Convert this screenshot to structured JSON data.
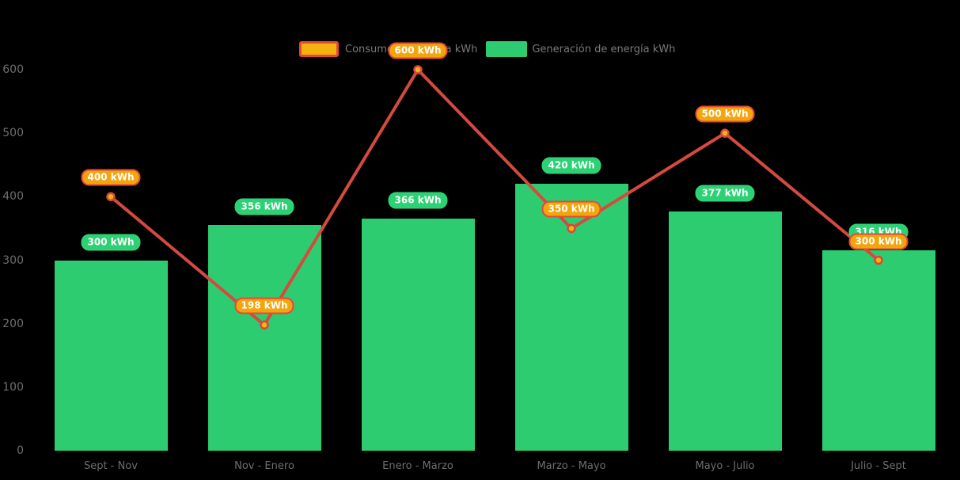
{
  "legend": {
    "consumption_label": "Consumo de energía kWh",
    "generation_label": "Generación de energía kWh"
  },
  "colors": {
    "background": "#000000",
    "bar_green": "#2dcc71",
    "badge_green_fill": "#2bd173",
    "line_red": "#d64a3e",
    "point_fill": "#f5b40f",
    "point_stroke": "#d9473c",
    "badge_orange_fill": "#f2a60d",
    "badge_orange_border": "#e84839",
    "badge_text": "#ffffff",
    "axis_text": "#6e6e6e",
    "legend_text": "#7a7a7a",
    "legend_marker_consumption_fill": "#f3b30e",
    "legend_marker_consumption_border": "#e84839"
  },
  "chart_data": {
    "type": "bar",
    "subtype": "bar-with-line-overlay",
    "title": "",
    "xlabel": "",
    "ylabel": "",
    "categories": [
      "Sept - Nov",
      "Nov - Enero",
      "Enero - Marzo",
      "Marzo - Mayo",
      "Mayo - Julio",
      "Julio - Sept"
    ],
    "series": [
      {
        "name": "Generación de energía kWh",
        "type": "bar",
        "color": "#2dcc71",
        "values": [
          300,
          356,
          366,
          420,
          377,
          316
        ],
        "data_labels": [
          "300 kWh",
          "356 kWh",
          "366 kWh",
          "420 kWh",
          "377 kWh",
          "316 kWh"
        ]
      },
      {
        "name": "Consumo de energía kWh",
        "type": "line",
        "color": "#d64a3e",
        "values": [
          400,
          198,
          600,
          350,
          500,
          300
        ],
        "data_labels": [
          "400 kWh",
          "198 kWh",
          "600 kWh",
          "350 kWh",
          "500 kWh",
          "300 kWh"
        ]
      }
    ],
    "ylim": [
      0,
      600
    ],
    "yticks": [
      0,
      100,
      200,
      300,
      400,
      500,
      600
    ],
    "grid": false,
    "legend_position": "top-center",
    "background": "#000000"
  }
}
